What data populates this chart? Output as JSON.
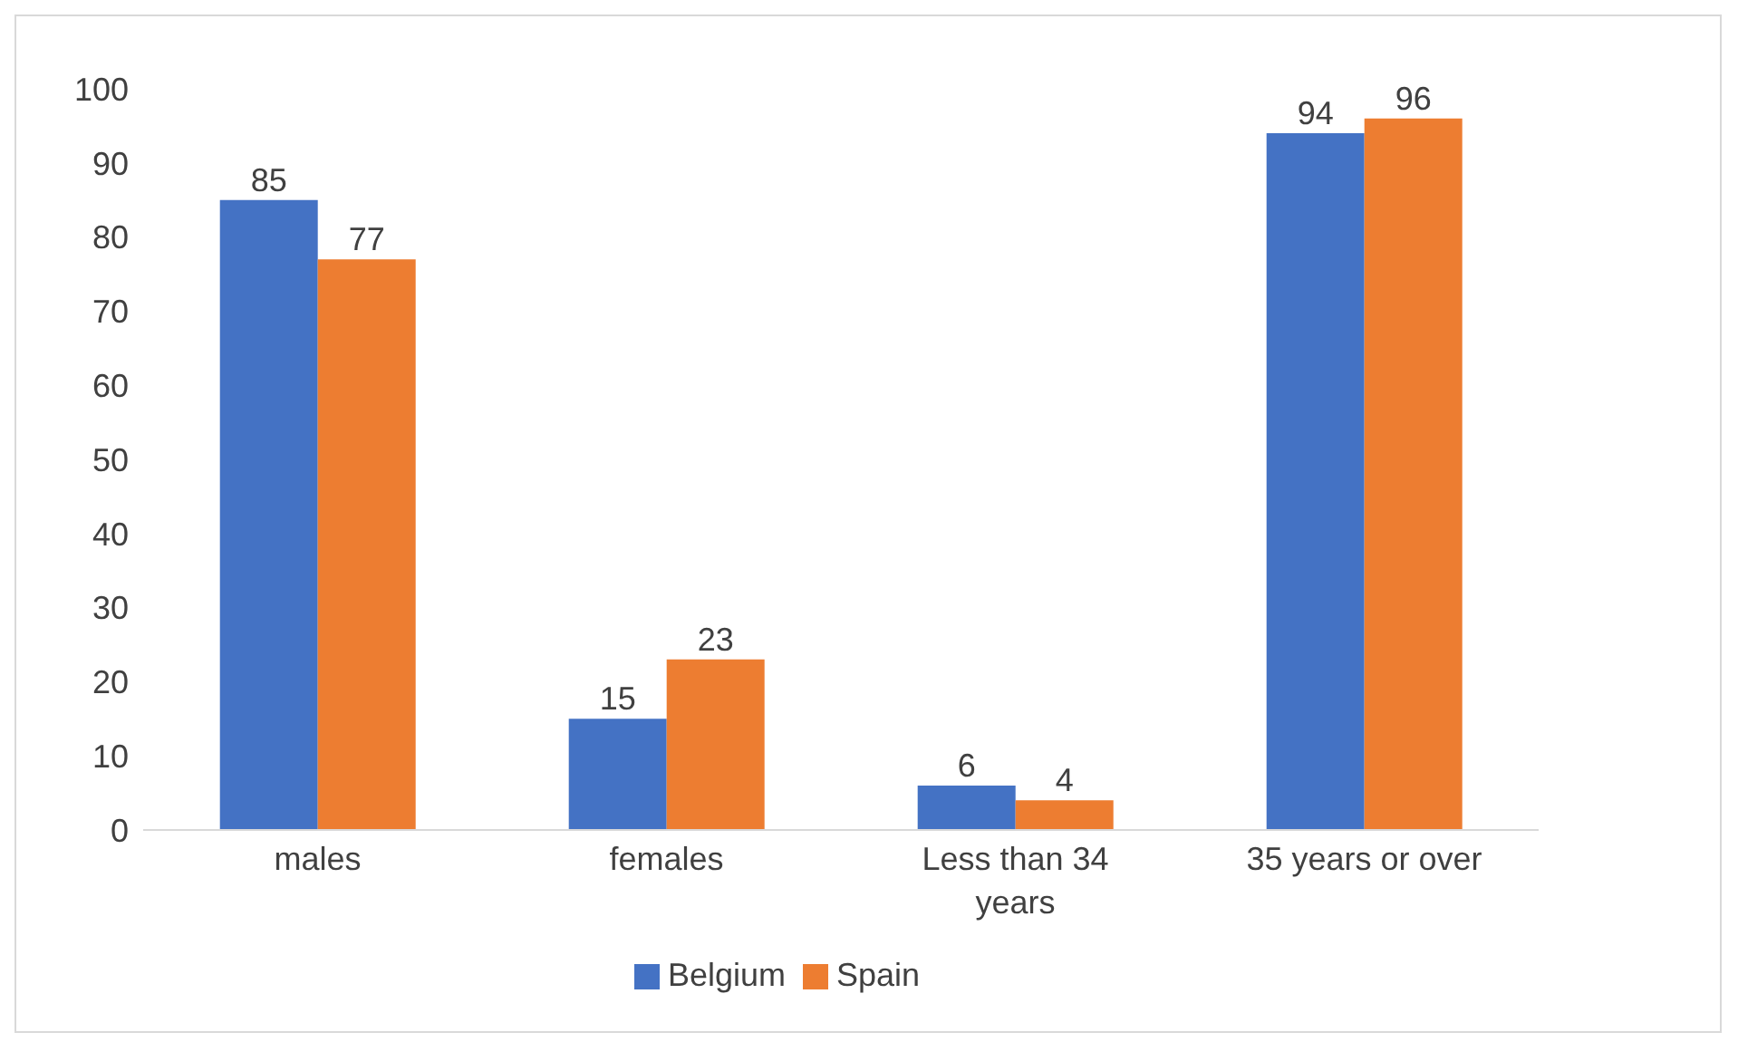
{
  "chart_data": {
    "type": "bar",
    "categories": [
      "males",
      "females",
      "Less than 34 years",
      "35 years or over"
    ],
    "series": [
      {
        "name": "Belgium",
        "color": "#4472c4",
        "values": [
          85,
          15,
          6,
          94
        ]
      },
      {
        "name": "Spain",
        "color": "#ed7d31",
        "values": [
          77,
          23,
          4,
          96
        ]
      }
    ],
    "ylim": [
      0,
      100
    ],
    "yticks": [
      0,
      10,
      20,
      30,
      40,
      50,
      60,
      70,
      80,
      90,
      100
    ],
    "grid": false,
    "legend": "bottom",
    "data_labels": true
  }
}
